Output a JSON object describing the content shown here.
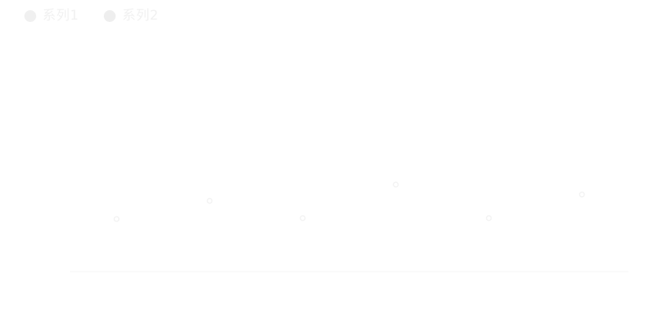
{
  "chart_data": {
    "type": "scatter",
    "categories": [
      "",
      "",
      "",
      "",
      "",
      ""
    ],
    "series": [
      {
        "name": "系列1",
        "values": [
          58,
          78,
          59,
          96,
          59,
          85
        ],
        "color": "#f3f3f3",
        "legend_color": "#f0f0f0"
      },
      {
        "name": "系列2",
        "values": [],
        "color": "#ececec",
        "legend_color": "#eeeeee"
      }
    ],
    "ylim": [
      0,
      200
    ],
    "legend_position": "top-left",
    "grid": false,
    "axis_color": "#f6f6f6",
    "label_color": "#f1f1f1"
  }
}
